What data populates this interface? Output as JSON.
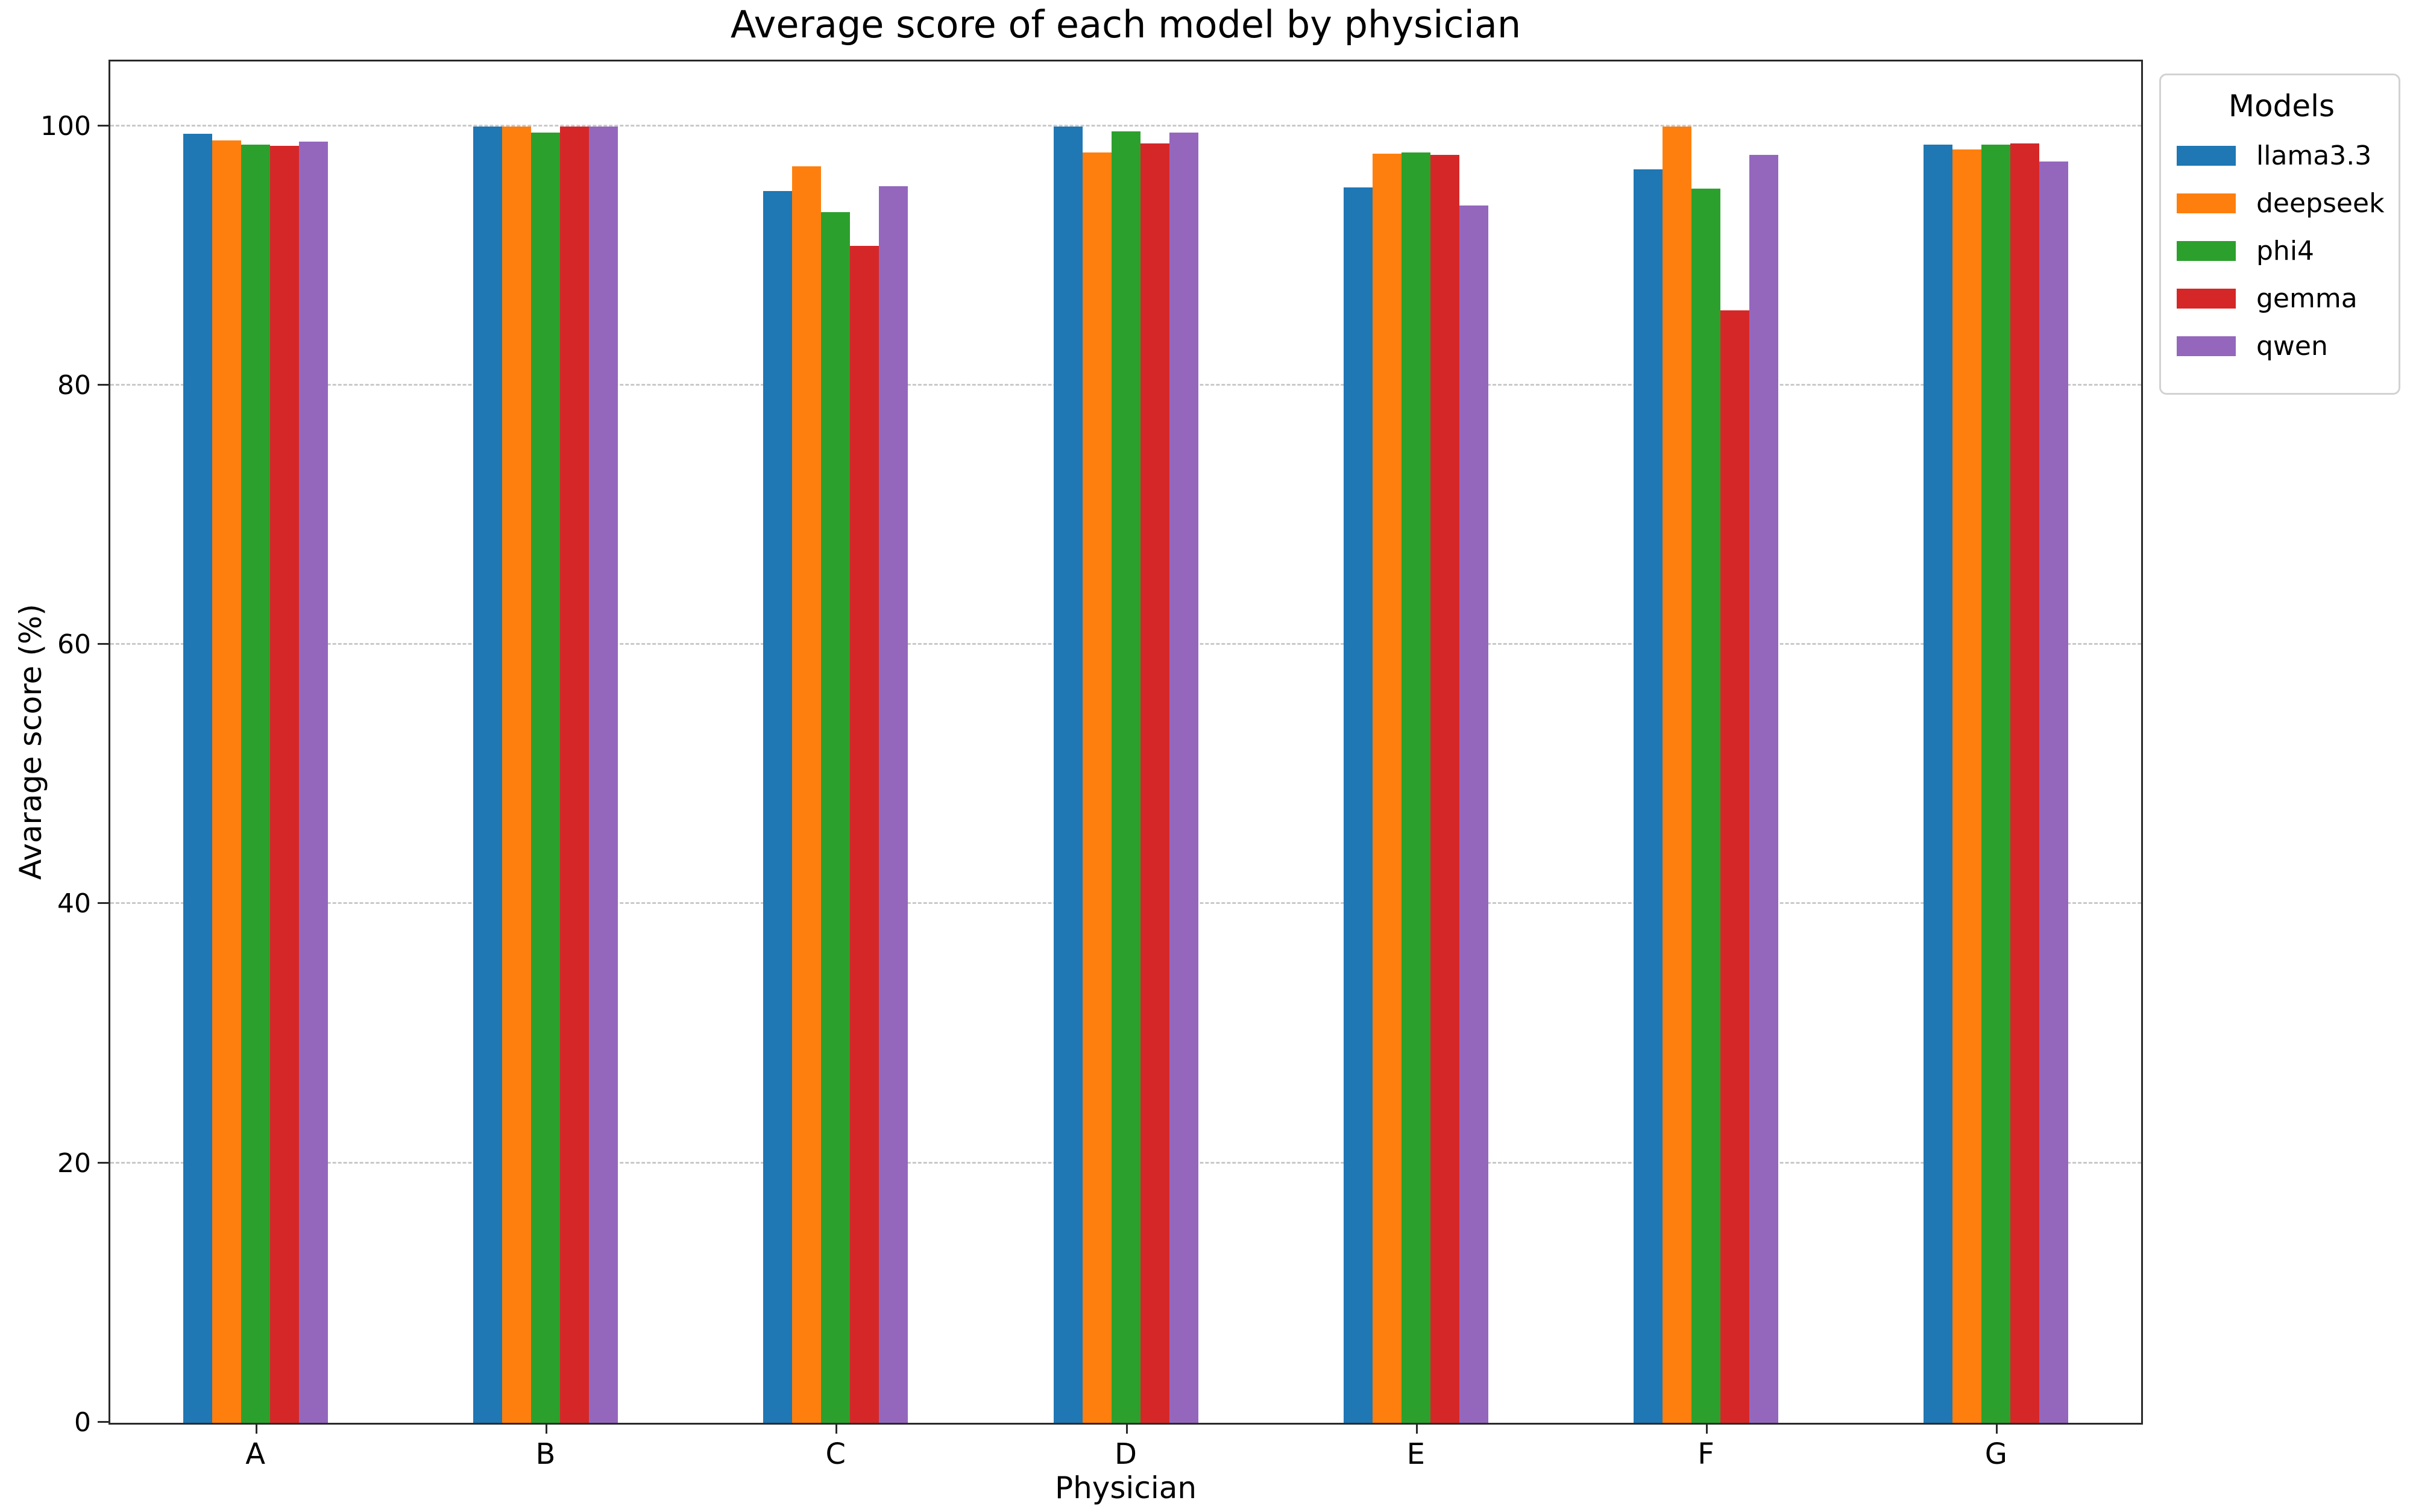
{
  "title": "Average score of each model by physician",
  "axes": {
    "xlabel": "Physician",
    "ylabel": "Avarage score (%)"
  },
  "legend": {
    "title": "Models",
    "position": "outside-top-right"
  },
  "chart_data": {
    "type": "bar",
    "title": "Average score of each model by physician",
    "xlabel": "Physician",
    "ylabel": "Avarage score (%)",
    "categories": [
      "A",
      "B",
      "C",
      "D",
      "E",
      "F",
      "G"
    ],
    "series": [
      {
        "name": "llama3.3",
        "color": "#1f77b4",
        "values": [
          99.4,
          100,
          95.0,
          100,
          95.3,
          96.7,
          98.6
        ]
      },
      {
        "name": "deepseek",
        "color": "#ff7f0e",
        "values": [
          98.9,
          100,
          96.9,
          98.0,
          97.9,
          100,
          98.2
        ]
      },
      {
        "name": "phi4",
        "color": "#2ca02c",
        "values": [
          98.6,
          99.5,
          93.4,
          99.6,
          98.0,
          95.2,
          98.6
        ]
      },
      {
        "name": "gemma",
        "color": "#d62728",
        "values": [
          98.5,
          100,
          90.8,
          98.7,
          97.8,
          85.8,
          98.7
        ]
      },
      {
        "name": "qwen",
        "color": "#9467bd",
        "values": [
          98.8,
          100,
          95.4,
          99.5,
          93.9,
          97.8,
          97.3
        ]
      }
    ],
    "ylim": [
      0,
      105
    ],
    "yticks": [
      0,
      20,
      40,
      60,
      80,
      100
    ],
    "grid": true,
    "grid_style": "dashed",
    "legend_title": "Models",
    "legend_position": "outside-top-right"
  }
}
